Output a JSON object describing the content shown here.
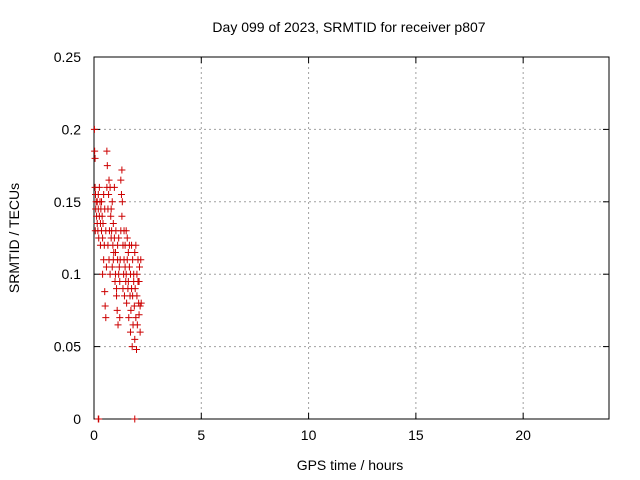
{
  "chart_data": {
    "type": "scatter",
    "title": "Day 099 of 2023, SRMTID for receiver p807",
    "xlabel": "GPS time / hours",
    "ylabel": "SRMTID / TECUs",
    "xlim": [
      0,
      24
    ],
    "ylim": [
      0,
      0.25
    ],
    "xticks": [
      0,
      5,
      10,
      15,
      20
    ],
    "yticks": [
      0,
      0.05,
      0.1,
      0.15,
      0.2,
      0.25
    ],
    "xtick_labels": [
      "0",
      "5",
      "10",
      "15",
      "20"
    ],
    "ytick_labels": [
      "0",
      "0.05",
      "0.1",
      "0.15",
      "0.2",
      "0.25"
    ],
    "grid": true,
    "marker": "+",
    "series": [
      {
        "color": "#cc0000",
        "x": [
          0.02,
          0.03,
          0.05,
          0.05,
          0.06,
          0.07,
          0.08,
          0.1,
          0.12,
          0.15,
          0.15,
          0.18,
          0.2,
          0.2,
          0.22,
          0.25,
          0.25,
          0.28,
          0.3,
          0.3,
          0.32,
          0.35,
          0.35,
          0.38,
          0.4,
          0.4,
          0.42,
          0.45,
          0.45,
          0.48,
          0.5,
          0.5,
          0.52,
          0.55,
          0.55,
          0.58,
          0.6,
          0.6,
          0.62,
          0.65,
          0.65,
          0.68,
          0.7,
          0.7,
          0.72,
          0.75,
          0.75,
          0.78,
          0.8,
          0.8,
          0.82,
          0.85,
          0.85,
          0.88,
          0.9,
          0.9,
          0.92,
          0.95,
          0.95,
          0.98,
          1.0,
          1.0,
          1.02,
          1.05,
          1.05,
          1.08,
          1.1,
          1.1,
          1.12,
          1.15,
          1.15,
          1.18,
          1.2,
          1.2,
          1.22,
          1.25,
          1.25,
          1.28,
          1.3,
          1.3,
          1.32,
          1.35,
          1.35,
          1.38,
          1.4,
          1.4,
          1.42,
          1.45,
          1.45,
          1.48,
          1.5,
          1.5,
          1.52,
          1.55,
          1.55,
          1.58,
          1.6,
          1.6,
          1.62,
          1.65,
          1.65,
          1.68,
          1.7,
          1.7,
          1.72,
          1.75,
          1.75,
          1.78,
          1.8,
          1.8,
          1.82,
          1.85,
          1.85,
          1.88,
          1.9,
          1.9,
          1.92,
          1.95,
          1.95,
          1.98,
          2.0,
          2.0,
          2.02,
          2.05,
          2.05,
          2.08,
          2.1,
          2.1,
          2.12,
          2.15,
          2.15,
          2.18,
          2.2,
          0.2,
          0.22,
          1.9
        ],
        "y": [
          0.2,
          0.185,
          0.18,
          0.16,
          0.13,
          0.155,
          0.145,
          0.15,
          0.14,
          0.15,
          0.135,
          0.13,
          0.145,
          0.155,
          0.125,
          0.14,
          0.16,
          0.15,
          0.135,
          0.12,
          0.145,
          0.15,
          0.13,
          0.14,
          0.125,
          0.1,
          0.135,
          0.155,
          0.11,
          0.12,
          0.145,
          0.088,
          0.078,
          0.07,
          0.13,
          0.105,
          0.185,
          0.16,
          0.175,
          0.145,
          0.12,
          0.155,
          0.11,
          0.165,
          0.13,
          0.16,
          0.1,
          0.14,
          0.145,
          0.125,
          0.13,
          0.15,
          0.105,
          0.12,
          0.135,
          0.11,
          0.115,
          0.16,
          0.125,
          0.095,
          0.1,
          0.115,
          0.13,
          0.09,
          0.085,
          0.075,
          0.12,
          0.11,
          0.065,
          0.1,
          0.125,
          0.105,
          0.095,
          0.07,
          0.11,
          0.165,
          0.13,
          0.155,
          0.172,
          0.14,
          0.15,
          0.12,
          0.09,
          0.1,
          0.13,
          0.11,
          0.085,
          0.105,
          0.12,
          0.095,
          0.13,
          0.1,
          0.08,
          0.11,
          0.125,
          0.09,
          0.115,
          0.095,
          0.07,
          0.105,
          0.12,
          0.085,
          0.06,
          0.1,
          0.075,
          0.09,
          0.12,
          0.05,
          0.11,
          0.085,
          0.065,
          0.095,
          0.1,
          0.078,
          0.055,
          0.115,
          0.09,
          0.07,
          0.12,
          0.048,
          0.1,
          0.085,
          0.065,
          0.11,
          0.095,
          0.08,
          0.072,
          0.095,
          0.105,
          0.078,
          0.06,
          0.11,
          0.08,
          0,
          0,
          0
        ]
      }
    ]
  }
}
